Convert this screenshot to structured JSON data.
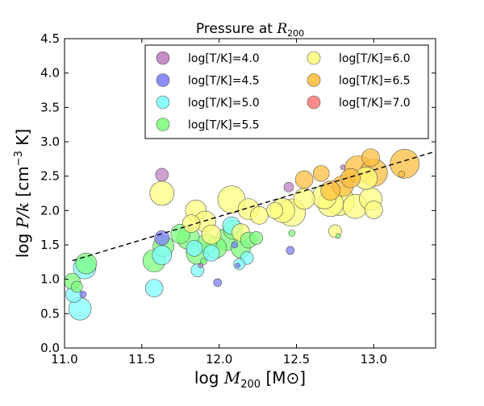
{
  "chart_data": {
    "type": "scatter",
    "title": "Pressure at R200",
    "title_parts": {
      "text": "Pressure at ",
      "symbol": "R",
      "subscript": "200"
    },
    "xlabel": "log M200 [M⊙]",
    "xlabel_parts": {
      "prefix": "log ",
      "symbol": "M",
      "subscript": "200",
      "unit": " [M⊙]"
    },
    "ylabel": "log P/k [cm−3 K]",
    "ylabel_parts": {
      "prefix": "log ",
      "symbol": "P/k",
      "unit_pre": " [cm",
      "superscript": "−3",
      "unit_post": " K]"
    },
    "xlim": [
      11.0,
      13.4
    ],
    "ylim": [
      0.0,
      4.5
    ],
    "xticks": [
      "11.0",
      "11.5",
      "12.0",
      "12.5",
      "13.0"
    ],
    "yticks": [
      "0.0",
      "0.5",
      "1.0",
      "1.5",
      "2.0",
      "2.5",
      "3.0",
      "3.5",
      "4.0",
      "4.5"
    ],
    "grid": false,
    "legend_position": "upper-right",
    "fit_line": {
      "style": "dashed",
      "x": [
        11.05,
        13.4
      ],
      "y": [
        1.27,
        2.86
      ]
    },
    "series": [
      {
        "name": "log[T/K]=4.0",
        "color": "#bf7fbf",
        "points": [
          {
            "x": 11.63,
            "y": 2.52,
            "s": 8
          },
          {
            "x": 12.45,
            "y": 2.34,
            "s": 6
          },
          {
            "x": 12.8,
            "y": 2.63,
            "s": 3
          },
          {
            "x": 11.88,
            "y": 1.2,
            "s": 3
          }
        ]
      },
      {
        "name": "log[T/K]=4.5",
        "color": "#7f7fff",
        "points": [
          {
            "x": 11.63,
            "y": 1.6,
            "s": 9
          },
          {
            "x": 11.99,
            "y": 0.95,
            "s": 5
          },
          {
            "x": 12.46,
            "y": 1.42,
            "s": 5
          },
          {
            "x": 11.12,
            "y": 0.78,
            "s": 4
          },
          {
            "x": 12.12,
            "y": 1.2,
            "s": 3
          },
          {
            "x": 12.1,
            "y": 1.5,
            "s": 4
          }
        ]
      },
      {
        "name": "log[T/K]=5.0",
        "color": "#7fffff",
        "points": [
          {
            "x": 11.1,
            "y": 0.57,
            "s": 14
          },
          {
            "x": 11.13,
            "y": 1.17,
            "s": 14
          },
          {
            "x": 11.58,
            "y": 0.87,
            "s": 11
          },
          {
            "x": 11.63,
            "y": 1.35,
            "s": 12
          },
          {
            "x": 11.86,
            "y": 1.13,
            "s": 8
          },
          {
            "x": 12.13,
            "y": 1.22,
            "s": 7
          },
          {
            "x": 12.18,
            "y": 1.31,
            "s": 8
          },
          {
            "x": 11.95,
            "y": 1.38,
            "s": 10
          },
          {
            "x": 12.08,
            "y": 1.78,
            "s": 11
          },
          {
            "x": 11.84,
            "y": 1.45,
            "s": 10
          },
          {
            "x": 11.06,
            "y": 0.78,
            "s": 10
          }
        ]
      },
      {
        "name": "log[T/K]=5.5",
        "color": "#7fff7f",
        "points": [
          {
            "x": 11.05,
            "y": 0.97,
            "s": 10
          },
          {
            "x": 11.08,
            "y": 0.89,
            "s": 7
          },
          {
            "x": 11.14,
            "y": 1.23,
            "s": 13
          },
          {
            "x": 11.58,
            "y": 1.27,
            "s": 14
          },
          {
            "x": 11.64,
            "y": 1.48,
            "s": 13
          },
          {
            "x": 11.8,
            "y": 1.6,
            "s": 14
          },
          {
            "x": 11.86,
            "y": 1.38,
            "s": 14
          },
          {
            "x": 11.92,
            "y": 1.52,
            "s": 12
          },
          {
            "x": 11.98,
            "y": 1.46,
            "s": 13
          },
          {
            "x": 12.05,
            "y": 1.58,
            "s": 14
          },
          {
            "x": 12.09,
            "y": 1.72,
            "s": 12
          },
          {
            "x": 12.14,
            "y": 1.45,
            "s": 12
          },
          {
            "x": 12.19,
            "y": 1.57,
            "s": 10
          },
          {
            "x": 12.24,
            "y": 1.6,
            "s": 8
          },
          {
            "x": 11.9,
            "y": 1.26,
            "s": 4
          },
          {
            "x": 12.47,
            "y": 1.67,
            "s": 4
          },
          {
            "x": 12.77,
            "y": 1.63,
            "s": 3
          },
          {
            "x": 11.75,
            "y": 1.66,
            "s": 12
          }
        ]
      },
      {
        "name": "log[T/K]=6.0",
        "color": "#ffff7f",
        "points": [
          {
            "x": 11.63,
            "y": 2.25,
            "s": 15
          },
          {
            "x": 11.85,
            "y": 2.0,
            "s": 13
          },
          {
            "x": 11.82,
            "y": 1.81,
            "s": 11
          },
          {
            "x": 11.91,
            "y": 1.84,
            "s": 13
          },
          {
            "x": 11.95,
            "y": 1.65,
            "s": 12
          },
          {
            "x": 12.08,
            "y": 2.16,
            "s": 17
          },
          {
            "x": 12.14,
            "y": 1.68,
            "s": 11
          },
          {
            "x": 12.19,
            "y": 2.02,
            "s": 13
          },
          {
            "x": 12.26,
            "y": 1.93,
            "s": 11
          },
          {
            "x": 12.41,
            "y": 2.0,
            "s": 15
          },
          {
            "x": 12.47,
            "y": 1.97,
            "s": 17
          },
          {
            "x": 12.55,
            "y": 2.17,
            "s": 13
          },
          {
            "x": 12.68,
            "y": 2.2,
            "s": 15
          },
          {
            "x": 12.72,
            "y": 2.1,
            "s": 16
          },
          {
            "x": 12.78,
            "y": 2.14,
            "s": 18
          },
          {
            "x": 12.88,
            "y": 2.06,
            "s": 15
          },
          {
            "x": 12.98,
            "y": 2.17,
            "s": 14
          },
          {
            "x": 13.0,
            "y": 2.01,
            "s": 11
          },
          {
            "x": 12.75,
            "y": 1.7,
            "s": 8
          },
          {
            "x": 12.95,
            "y": 2.47,
            "s": 14
          },
          {
            "x": 12.36,
            "y": 2.0,
            "s": 10
          }
        ]
      },
      {
        "name": "log[T/K]=6.5",
        "color": "#ffbf3f",
        "points": [
          {
            "x": 12.55,
            "y": 2.45,
            "s": 11
          },
          {
            "x": 12.66,
            "y": 2.54,
            "s": 10
          },
          {
            "x": 12.72,
            "y": 2.29,
            "s": 12
          },
          {
            "x": 12.8,
            "y": 2.36,
            "s": 13
          },
          {
            "x": 12.9,
            "y": 2.6,
            "s": 17
          },
          {
            "x": 12.98,
            "y": 2.77,
            "s": 11
          },
          {
            "x": 13.0,
            "y": 2.55,
            "s": 17
          },
          {
            "x": 13.2,
            "y": 2.68,
            "s": 18
          },
          {
            "x": 12.85,
            "y": 2.47,
            "s": 12
          },
          {
            "x": 13.18,
            "y": 2.53,
            "s": 4
          }
        ]
      },
      {
        "name": "log[T/K]=7.0",
        "color": "#ff7f7f",
        "points": []
      }
    ]
  }
}
